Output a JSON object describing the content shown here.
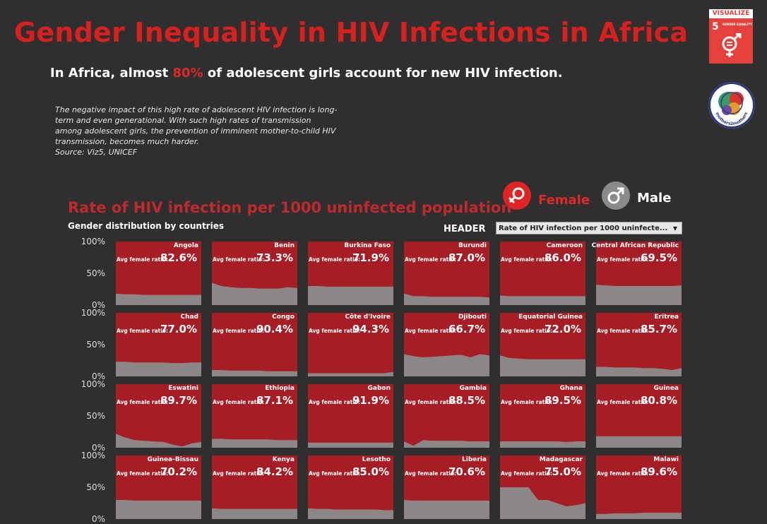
{
  "header": {
    "title": "Gender Inequality in HIV Infections in Africa",
    "subtitle_pre": "In Africa, almost ",
    "subtitle_highlight": "80%",
    "subtitle_post": " of adolescent  girls account for new HIV infection.",
    "description": "The negative impact of this high rate of adolescent HIV infection is long-term and even generational. With such high rates of transmission among adolescent girls, the prevention of imminent mother-to-child HIV transmission, becomes much harder.",
    "source": "Source: Viz5, UNICEF"
  },
  "logos": {
    "sdg_banner": "VISUALIZE",
    "sdg_number": "5",
    "sdg_text": "GENDER EQUALITY",
    "m2m_text": "mothers2mothers"
  },
  "legend": {
    "female_label": "Female",
    "male_label": "Male",
    "female_color": "#e02323",
    "male_color": "#8a8a8a"
  },
  "colors": {
    "background": "#2f2f2f",
    "female_area": "#a71d25",
    "male_area": "#8c8686",
    "accent": "#d8201f"
  },
  "controls": {
    "header_label": "HEADER",
    "dropdown_value": "Rate of HIV infection per 1000 uninfecte..."
  },
  "chart_data": {
    "type": "area",
    "title": "Rate of HIV infection per 1000 uninfected population",
    "subtitle": "Gender distribution by countries",
    "y_ticks": [
      "100%",
      "50%",
      "0%"
    ],
    "ylim": [
      0,
      100
    ],
    "ratio_label": "Avg female ratio:",
    "series_names": [
      "Female",
      "Male"
    ],
    "panels": [
      {
        "country": "Angola",
        "ratio": "82.6%",
        "male_share": [
          18,
          17,
          17,
          16,
          16,
          16,
          16,
          16,
          16,
          16
        ]
      },
      {
        "country": "Benin",
        "ratio": "73.3%",
        "male_share": [
          35,
          30,
          28,
          27,
          27,
          26,
          26,
          26,
          28,
          27
        ]
      },
      {
        "country": "Burkina Faso",
        "ratio": "71.9%",
        "male_share": [
          30,
          30,
          29,
          29,
          29,
          29,
          29,
          29,
          29,
          29
        ]
      },
      {
        "country": "Burundi",
        "ratio": "87.0%",
        "male_share": [
          18,
          14,
          14,
          13,
          13,
          13,
          13,
          13,
          13,
          12
        ]
      },
      {
        "country": "Cameroon",
        "ratio": "86.0%",
        "male_share": [
          15,
          14,
          14,
          14,
          14,
          14,
          14,
          14,
          14,
          14
        ]
      },
      {
        "country": "Central African Republic",
        "ratio": "69.5%",
        "male_share": [
          32,
          31,
          30,
          30,
          30,
          30,
          30,
          30,
          30,
          31
        ]
      },
      {
        "country": "Chad",
        "ratio": "77.0%",
        "male_share": [
          23,
          23,
          22,
          22,
          22,
          22,
          21,
          21,
          22,
          22
        ]
      },
      {
        "country": "Congo",
        "ratio": "90.4%",
        "male_share": [
          10,
          10,
          9,
          9,
          9,
          9,
          8,
          8,
          8,
          8
        ]
      },
      {
        "country": "Côte d'Ivoire",
        "ratio": "94.3%",
        "male_share": [
          5,
          5,
          5,
          5,
          5,
          5,
          5,
          5,
          5,
          7
        ]
      },
      {
        "country": "Djibouti",
        "ratio": "66.7%",
        "male_share": [
          35,
          32,
          30,
          31,
          32,
          33,
          34,
          30,
          35,
          33
        ]
      },
      {
        "country": "Equatorial Guinea",
        "ratio": "72.0%",
        "male_share": [
          33,
          29,
          28,
          27,
          27,
          27,
          27,
          27,
          27,
          27
        ]
      },
      {
        "country": "Eritrea",
        "ratio": "85.7%",
        "male_share": [
          15,
          15,
          14,
          14,
          14,
          13,
          13,
          12,
          10,
          13
        ]
      },
      {
        "country": "Eswatini",
        "ratio": "89.7%",
        "male_share": [
          22,
          16,
          12,
          11,
          10,
          9,
          5,
          2,
          7,
          9
        ]
      },
      {
        "country": "Ethiopia",
        "ratio": "87.1%",
        "male_share": [
          14,
          14,
          13,
          13,
          13,
          13,
          13,
          12,
          12,
          12
        ]
      },
      {
        "country": "Gabon",
        "ratio": "91.9%",
        "male_share": [
          8,
          8,
          8,
          8,
          8,
          8,
          8,
          8,
          8,
          8
        ]
      },
      {
        "country": "Gambia",
        "ratio": "88.5%",
        "male_share": [
          10,
          3,
          12,
          11,
          11,
          11,
          11,
          10,
          10,
          10
        ]
      },
      {
        "country": "Ghana",
        "ratio": "89.5%",
        "male_share": [
          10,
          10,
          10,
          10,
          10,
          10,
          10,
          9,
          10,
          10
        ]
      },
      {
        "country": "Guinea",
        "ratio": "80.8%",
        "male_share": [
          18,
          18,
          18,
          18,
          18,
          18,
          18,
          18,
          18,
          18
        ]
      },
      {
        "country": "Guinea-Bissau",
        "ratio": "70.2%",
        "male_share": [
          30,
          30,
          29,
          29,
          29,
          29,
          29,
          29,
          29,
          29
        ]
      },
      {
        "country": "Kenya",
        "ratio": "84.2%",
        "male_share": [
          17,
          16,
          16,
          16,
          16,
          16,
          16,
          16,
          16,
          16
        ]
      },
      {
        "country": "Lesotho",
        "ratio": "85.0%",
        "male_share": [
          17,
          16,
          16,
          15,
          15,
          15,
          15,
          15,
          14,
          14
        ]
      },
      {
        "country": "Liberia",
        "ratio": "70.6%",
        "male_share": [
          30,
          29,
          29,
          29,
          29,
          29,
          29,
          29,
          29,
          29
        ]
      },
      {
        "country": "Madagascar",
        "ratio": "75.0%",
        "male_share": [
          50,
          50,
          50,
          50,
          30,
          30,
          25,
          20,
          22,
          25
        ]
      },
      {
        "country": "Malawi",
        "ratio": "89.6%",
        "male_share": [
          8,
          8,
          9,
          9,
          9,
          10,
          10,
          10,
          10,
          10
        ]
      }
    ]
  }
}
